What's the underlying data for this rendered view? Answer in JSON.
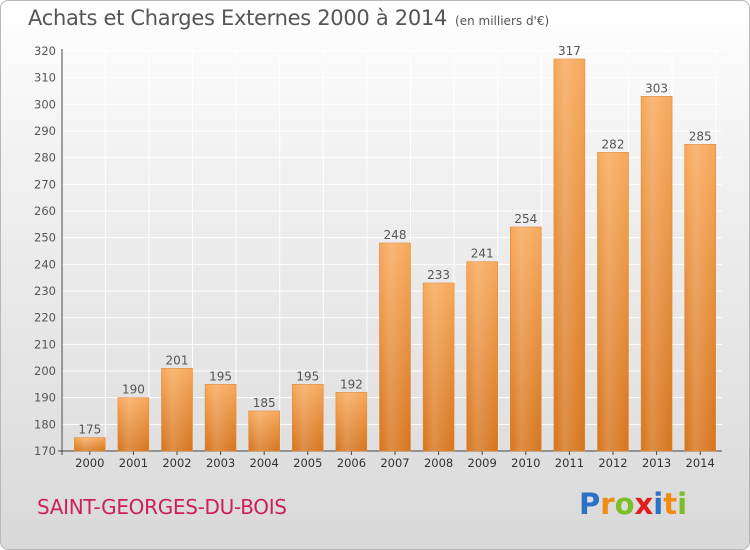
{
  "title": "Achats et Charges Externes 2000 à 2014",
  "subtitle": "(en milliers d'€)",
  "commune": "SAINT-GEORGES-DU-BOIS",
  "brand": {
    "letters": [
      "P",
      "r",
      "o",
      "x",
      "i",
      "t",
      "i"
    ],
    "colors": [
      "#2a72c8",
      "#f08a10",
      "#7cbf24",
      "#e31c1c",
      "#2a72c8",
      "#f08a10",
      "#7cbf24"
    ]
  },
  "colors": {
    "bar_top": "#f7a85a",
    "bar_bottom": "#d6741c",
    "bar_edge": "#e08a3a",
    "grid": "#ffffff",
    "text": "#555555",
    "commune": "#cc1f5c"
  },
  "chart_data": {
    "type": "bar",
    "categories": [
      "2000",
      "2001",
      "2002",
      "2003",
      "2004",
      "2005",
      "2006",
      "2007",
      "2008",
      "2009",
      "2010",
      "2011",
      "2012",
      "2013",
      "2014"
    ],
    "values": [
      175,
      190,
      201,
      195,
      185,
      195,
      192,
      248,
      233,
      241,
      254,
      317,
      282,
      303,
      285
    ],
    "ylim": [
      170,
      320
    ],
    "yticks": [
      170,
      180,
      190,
      200,
      210,
      220,
      230,
      240,
      250,
      260,
      270,
      280,
      290,
      300,
      310,
      320
    ],
    "grid": true,
    "xlabel": "",
    "ylabel": ""
  }
}
